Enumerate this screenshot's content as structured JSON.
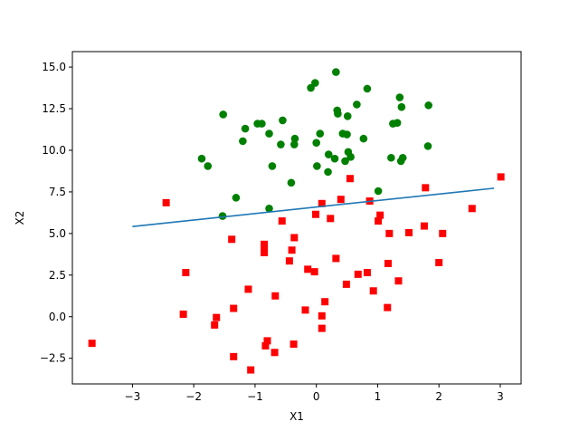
{
  "chart_data": {
    "type": "scatter",
    "xlabel": "X1",
    "ylabel": "X2",
    "xlim": [
      -3.98,
      3.34
    ],
    "ylim": [
      -4.04,
      15.93
    ],
    "xticks": [
      -3,
      -2,
      -1,
      0,
      1,
      2,
      3
    ],
    "xtick_labels": [
      "−3",
      "−2",
      "−1",
      "0",
      "1",
      "2",
      "3"
    ],
    "yticks": [
      -2.5,
      0.0,
      2.5,
      5.0,
      7.5,
      10.0,
      12.5,
      15.0
    ],
    "ytick_labels": [
      "−2.5",
      "0.0",
      "2.5",
      "5.0",
      "7.5",
      "10.0",
      "12.5",
      "15.0"
    ],
    "grid": false,
    "series": [
      {
        "marker": "circle",
        "color": "#008000",
        "points": [
          [
            0.32,
            14.7
          ],
          [
            -0.02,
            14.05
          ],
          [
            -0.09,
            13.75
          ],
          [
            0.83,
            13.7
          ],
          [
            1.36,
            13.18
          ],
          [
            0.66,
            12.75
          ],
          [
            1.39,
            12.6
          ],
          [
            1.83,
            12.7
          ],
          [
            -1.52,
            12.15
          ],
          [
            0.34,
            12.4
          ],
          [
            0.35,
            12.2
          ],
          [
            0.51,
            12.05
          ],
          [
            -0.55,
            11.8
          ],
          [
            -0.96,
            11.6
          ],
          [
            -0.89,
            11.6
          ],
          [
            1.32,
            11.65
          ],
          [
            1.25,
            11.6
          ],
          [
            -1.16,
            11.3
          ],
          [
            -0.77,
            11.0
          ],
          [
            0.06,
            11.0
          ],
          [
            0.43,
            11.0
          ],
          [
            0.5,
            10.95
          ],
          [
            0.77,
            10.7
          ],
          [
            -0.35,
            10.7
          ],
          [
            -1.2,
            10.55
          ],
          [
            -0.58,
            10.35
          ],
          [
            -0.36,
            10.35
          ],
          [
            0.0,
            10.45
          ],
          [
            1.82,
            10.25
          ],
          [
            0.52,
            9.9
          ],
          [
            0.2,
            9.75
          ],
          [
            0.56,
            9.6
          ],
          [
            0.3,
            9.5
          ],
          [
            1.22,
            9.55
          ],
          [
            1.41,
            9.55
          ],
          [
            1.38,
            9.35
          ],
          [
            0.47,
            9.35
          ],
          [
            -1.87,
            9.5
          ],
          [
            -1.77,
            9.05
          ],
          [
            -0.72,
            9.05
          ],
          [
            0.01,
            9.05
          ],
          [
            0.19,
            8.7
          ],
          [
            -0.41,
            8.05
          ],
          [
            -1.31,
            7.15
          ],
          [
            1.01,
            7.55
          ],
          [
            -0.77,
            6.5
          ],
          [
            -1.53,
            6.05
          ]
        ]
      },
      {
        "marker": "square",
        "color": "#ff0000",
        "points": [
          [
            3.01,
            8.4
          ],
          [
            0.55,
            8.3
          ],
          [
            1.78,
            7.75
          ],
          [
            -2.45,
            6.85
          ],
          [
            0.4,
            7.05
          ],
          [
            0.87,
            6.95
          ],
          [
            0.09,
            6.8
          ],
          [
            2.54,
            6.5
          ],
          [
            -0.01,
            6.15
          ],
          [
            1.04,
            6.1
          ],
          [
            0.23,
            5.9
          ],
          [
            1.01,
            5.75
          ],
          [
            -0.56,
            5.75
          ],
          [
            1.76,
            5.45
          ],
          [
            1.51,
            5.05
          ],
          [
            2.06,
            5.0
          ],
          [
            1.19,
            5.0
          ],
          [
            -1.38,
            4.65
          ],
          [
            -0.36,
            4.75
          ],
          [
            -0.85,
            4.35
          ],
          [
            -0.85,
            4.1
          ],
          [
            -0.85,
            3.85
          ],
          [
            -0.4,
            4.0
          ],
          [
            0.32,
            3.5
          ],
          [
            -0.44,
            3.35
          ],
          [
            1.17,
            3.2
          ],
          [
            2.0,
            3.25
          ],
          [
            -2.13,
            2.65
          ],
          [
            -0.14,
            2.85
          ],
          [
            -0.03,
            2.7
          ],
          [
            0.68,
            2.55
          ],
          [
            0.83,
            2.65
          ],
          [
            1.34,
            2.15
          ],
          [
            0.49,
            1.95
          ],
          [
            -1.11,
            1.65
          ],
          [
            0.93,
            1.55
          ],
          [
            -0.67,
            1.25
          ],
          [
            0.14,
            0.9
          ],
          [
            1.16,
            0.55
          ],
          [
            -1.35,
            0.5
          ],
          [
            -0.18,
            0.4
          ],
          [
            -2.17,
            0.15
          ],
          [
            0.09,
            0.05
          ],
          [
            -1.63,
            -0.05
          ],
          [
            -1.66,
            -0.5
          ],
          [
            0.09,
            -0.7
          ],
          [
            -3.66,
            -1.6
          ],
          [
            -0.8,
            -1.45
          ],
          [
            -0.37,
            -1.65
          ],
          [
            -0.83,
            -1.75
          ],
          [
            -0.68,
            -2.15
          ],
          [
            -1.35,
            -2.4
          ],
          [
            -1.07,
            -3.2
          ]
        ]
      }
    ],
    "lines": [
      {
        "color": "#1f77b4",
        "points": [
          [
            -3.0,
            5.42
          ],
          [
            2.9,
            7.72
          ]
        ]
      }
    ]
  }
}
